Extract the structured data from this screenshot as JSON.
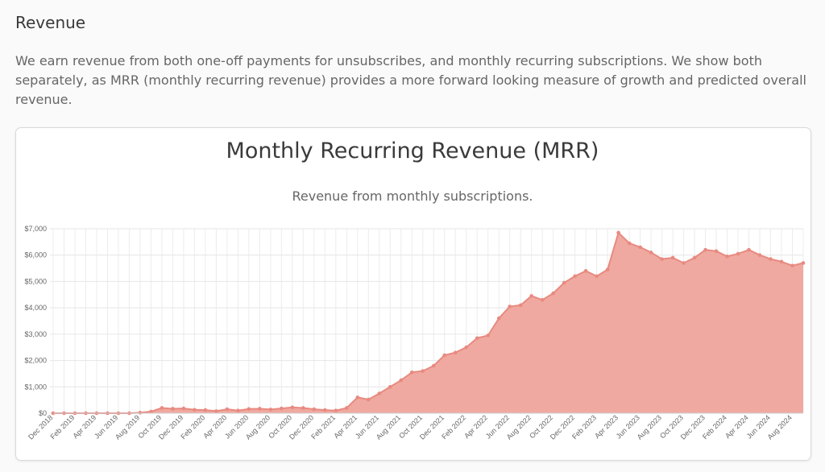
{
  "section": {
    "title": "Revenue",
    "description": "We earn revenue from both one-off payments for unsubscribes, and monthly recurring subscriptions. We show both separately, as MRR (monthly recurring revenue) provides a more forward looking measure of growth and predicted overall revenue."
  },
  "colors": {
    "fill": "#efa9a0",
    "line": "#e88a80",
    "point": "#e88a80"
  },
  "chart_data": {
    "type": "area",
    "title": "Monthly Recurring Revenue (MRR)",
    "subtitle": "Revenue from monthly subscriptions.",
    "xlabel": "",
    "ylabel": "",
    "ylim": [
      0,
      7000
    ],
    "y_ticks": [
      {
        "value": 0,
        "label": "$0"
      },
      {
        "value": 1000,
        "label": "$1,000"
      },
      {
        "value": 2000,
        "label": "$2,000"
      },
      {
        "value": 3000,
        "label": "$3,000"
      },
      {
        "value": 4000,
        "label": "$4,000"
      },
      {
        "value": 5000,
        "label": "$5,000"
      },
      {
        "value": 6000,
        "label": "$6,000"
      },
      {
        "value": 7000,
        "label": "$7,000"
      }
    ],
    "grid": true,
    "legend": "none",
    "x": [
      "Dec 2018",
      "Jan 2019",
      "Feb 2019",
      "Mar 2019",
      "Apr 2019",
      "May 2019",
      "Jun 2019",
      "Jul 2019",
      "Aug 2019",
      "Sep 2019",
      "Oct 2019",
      "Nov 2019",
      "Dec 2019",
      "Jan 2020",
      "Feb 2020",
      "Mar 2020",
      "Apr 2020",
      "May 2020",
      "Jun 2020",
      "Jul 2020",
      "Aug 2020",
      "Sep 2020",
      "Oct 2020",
      "Nov 2020",
      "Dec 2020",
      "Jan 2021",
      "Feb 2021",
      "Mar 2021",
      "Apr 2021",
      "May 2021",
      "Jun 2021",
      "Jul 2021",
      "Aug 2021",
      "Sep 2021",
      "Oct 2021",
      "Nov 2021",
      "Dec 2021",
      "Jan 2022",
      "Feb 2022",
      "Mar 2022",
      "Apr 2022",
      "May 2022",
      "Jun 2022",
      "Jul 2022",
      "Aug 2022",
      "Sep 2022",
      "Oct 2022",
      "Nov 2022",
      "Dec 2022",
      "Jan 2023",
      "Feb 2023",
      "Mar 2023",
      "Apr 2023",
      "May 2023",
      "Jun 2023",
      "Jul 2023",
      "Aug 2023",
      "Sep 2023",
      "Oct 2023",
      "Nov 2023",
      "Dec 2023",
      "Jan 2024",
      "Feb 2024",
      "Mar 2024",
      "Apr 2024",
      "May 2024",
      "Jun 2024",
      "Jul 2024",
      "Aug 2024",
      "Sep 2024"
    ],
    "x_tick_labels": [
      "Dec 2018",
      "Feb 2019",
      "Apr 2019",
      "Jun 2019",
      "Aug 2019",
      "Oct 2019",
      "Dec 2019",
      "Feb 2020",
      "Apr 2020",
      "Jun 2020",
      "Aug 2020",
      "Oct 2020",
      "Dec 2020",
      "Feb 2021",
      "Apr 2021",
      "Jun 2021",
      "Aug 2021",
      "Oct 2021",
      "Dec 2021",
      "Feb 2022",
      "Apr 2022",
      "Jun 2022",
      "Aug 2022",
      "Oct 2022",
      "Dec 2022",
      "Feb 2023",
      "Apr 2023",
      "Jun 2023",
      "Aug 2023",
      "Oct 2023",
      "Dec 2023",
      "Feb 2024",
      "Apr 2024",
      "Jun 2024",
      "Aug 2024"
    ],
    "series": [
      {
        "values": [
          0,
          0,
          0,
          0,
          0,
          0,
          0,
          0,
          20,
          60,
          200,
          170,
          180,
          130,
          120,
          80,
          150,
          100,
          160,
          170,
          140,
          180,
          220,
          200,
          150,
          120,
          100,
          200,
          600,
          520,
          750,
          1000,
          1250,
          1550,
          1600,
          1800,
          2200,
          2300,
          2500,
          2850,
          2950,
          3600,
          4050,
          4100,
          4450,
          4300,
          4550,
          4950,
          5200,
          5400,
          5200,
          5450,
          6850,
          6450,
          6300,
          6100,
          5850,
          5900,
          5700,
          5900,
          6200,
          6150,
          5950,
          6050,
          6200,
          6000,
          5850,
          5750,
          5600,
          5700
        ]
      }
    ]
  }
}
